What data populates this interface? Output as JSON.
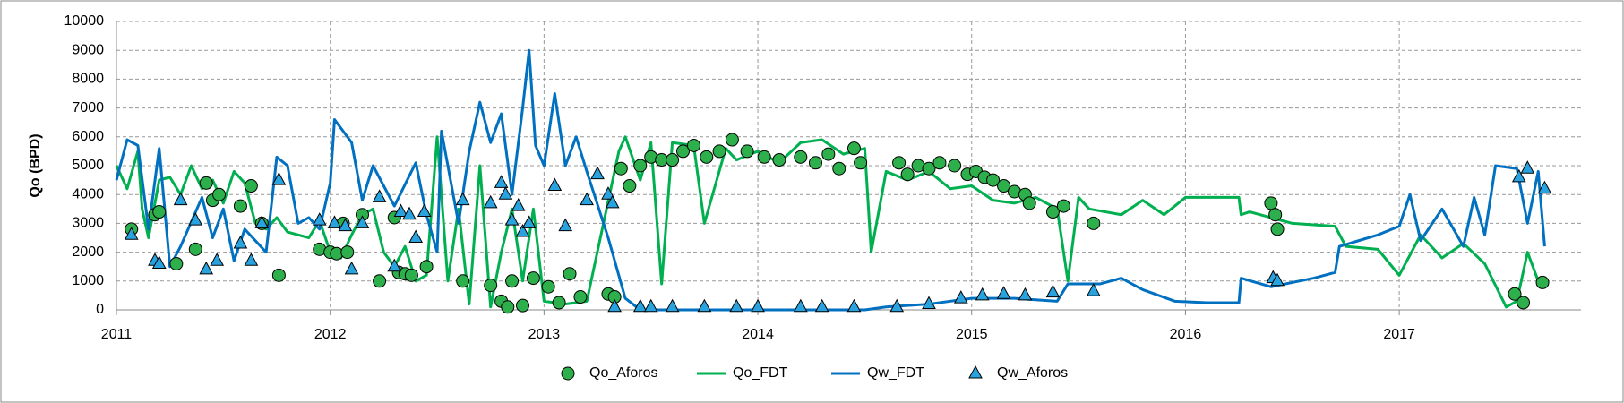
{
  "chart_data": {
    "type": "combo",
    "ylabel": "Qo (BPD)",
    "xlim": [
      2011,
      2017.85
    ],
    "xticks": [
      2011,
      2012,
      2013,
      2014,
      2015,
      2016,
      2017
    ],
    "ylim": [
      0,
      10000
    ],
    "yticks": [
      0,
      1000,
      2000,
      3000,
      4000,
      5000,
      6000,
      7000,
      8000,
      9000,
      10000
    ],
    "grid": true,
    "legend": "bottom",
    "series": [
      {
        "name": "Qo_Aforos",
        "kind": "scatter",
        "marker": "circle",
        "color": "#2db04b",
        "x": [
          2011.07,
          2011.18,
          2011.2,
          2011.28,
          2011.37,
          2011.42,
          2011.45,
          2011.48,
          2011.58,
          2011.63,
          2011.68,
          2011.76,
          2011.95,
          2012.0,
          2012.03,
          2012.06,
          2012.08,
          2012.15,
          2012.23,
          2012.3,
          2012.32,
          2012.35,
          2012.38,
          2012.45,
          2012.62,
          2012.75,
          2012.8,
          2012.83,
          2012.85,
          2012.9,
          2012.95,
          2013.02,
          2013.07,
          2013.12,
          2013.17,
          2013.3,
          2013.33,
          2013.36,
          2013.4,
          2013.45,
          2013.5,
          2013.55,
          2013.6,
          2013.65,
          2013.7,
          2013.76,
          2013.82,
          2013.88,
          2013.95,
          2014.03,
          2014.1,
          2014.2,
          2014.27,
          2014.33,
          2014.38,
          2014.45,
          2014.48,
          2014.66,
          2014.7,
          2014.75,
          2014.8,
          2014.85,
          2014.92,
          2014.98,
          2015.02,
          2015.06,
          2015.1,
          2015.15,
          2015.2,
          2015.25,
          2015.27,
          2015.38,
          2015.43,
          2015.57,
          2016.4,
          2016.42,
          2016.43,
          2017.54,
          2017.58,
          2017.67
        ],
        "values": [
          2800,
          3300,
          3400,
          1600,
          2100,
          4400,
          3800,
          4000,
          3600,
          4300,
          3000,
          1200,
          2100,
          2000,
          1950,
          3000,
          2000,
          3300,
          1000,
          3200,
          1300,
          1250,
          1200,
          1500,
          1000,
          850,
          300,
          100,
          1000,
          150,
          1100,
          800,
          250,
          1250,
          450,
          550,
          450,
          4900,
          4300,
          5000,
          5300,
          5200,
          5200,
          5500,
          5700,
          5300,
          5500,
          5900,
          5500,
          5300,
          5200,
          5300,
          5100,
          5400,
          4900,
          5600,
          5100,
          5100,
          4700,
          5000,
          4900,
          5100,
          5000,
          4700,
          4800,
          4600,
          4500,
          4300,
          4100,
          4000,
          3700,
          3400,
          3600,
          3000,
          3700,
          3300,
          2800,
          550,
          250,
          950
        ]
      },
      {
        "name": "Qo_FDT",
        "kind": "line",
        "color": "#00b050",
        "x": [
          2011.0,
          2011.05,
          2011.1,
          2011.12,
          2011.15,
          2011.2,
          2011.25,
          2011.3,
          2011.35,
          2011.4,
          2011.45,
          2011.5,
          2011.55,
          2011.6,
          2011.65,
          2011.7,
          2011.75,
          2011.8,
          2011.9,
          2011.95,
          2012.0,
          2012.05,
          2012.1,
          2012.15,
          2012.2,
          2012.25,
          2012.3,
          2012.35,
          2012.4,
          2012.45,
          2012.5,
          2012.55,
          2012.6,
          2012.65,
          2012.7,
          2012.75,
          2012.8,
          2012.85,
          2012.9,
          2012.95,
          2013.0,
          2013.1,
          2013.2,
          2013.35,
          2013.38,
          2013.45,
          2013.5,
          2013.55,
          2013.6,
          2013.7,
          2013.75,
          2013.85,
          2013.9,
          2014.0,
          2014.1,
          2014.2,
          2014.3,
          2014.4,
          2014.5,
          2014.53,
          2014.6,
          2014.7,
          2014.8,
          2014.9,
          2015.0,
          2015.1,
          2015.2,
          2015.3,
          2015.4,
          2015.45,
          2015.5,
          2015.55,
          2015.7,
          2015.8,
          2015.9,
          2016.0,
          2016.25,
          2016.26,
          2016.3,
          2016.5,
          2016.7,
          2016.75,
          2016.9,
          2017.0,
          2017.1,
          2017.2,
          2017.3,
          2017.4,
          2017.5,
          2017.55,
          2017.6,
          2017.65
        ],
        "values": [
          5000,
          4200,
          5500,
          3500,
          2500,
          4500,
          4600,
          4000,
          5000,
          4200,
          4500,
          3700,
          4800,
          4400,
          3000,
          2800,
          3200,
          2700,
          2500,
          3100,
          2000,
          1800,
          2600,
          3300,
          3500,
          2000,
          1500,
          2200,
          1000,
          1200,
          6000,
          1000,
          3500,
          200,
          5000,
          100,
          2000,
          3500,
          1000,
          3500,
          300,
          200,
          300,
          5500,
          6000,
          4500,
          5800,
          900,
          5800,
          5700,
          3000,
          5600,
          5200,
          5500,
          5100,
          5800,
          5900,
          5400,
          5600,
          2000,
          4800,
          4500,
          4800,
          4200,
          4300,
          3800,
          3700,
          3900,
          3500,
          1000,
          3900,
          3500,
          3300,
          3800,
          3300,
          3900,
          3900,
          3300,
          3400,
          3000,
          2900,
          2200,
          2100,
          1200,
          2600,
          1800,
          2300,
          1600,
          100,
          300,
          2000,
          1000
        ]
      },
      {
        "name": "Qw_FDT",
        "kind": "line",
        "color": "#0070c0",
        "x": [
          2011.0,
          2011.05,
          2011.1,
          2011.15,
          2011.2,
          2011.25,
          2011.3,
          2011.4,
          2011.45,
          2011.5,
          2011.55,
          2011.6,
          2011.7,
          2011.75,
          2011.8,
          2011.85,
          2011.9,
          2011.95,
          2012.0,
          2012.02,
          2012.1,
          2012.15,
          2012.2,
          2012.3,
          2012.4,
          2012.45,
          2012.5,
          2012.52,
          2012.6,
          2012.65,
          2012.7,
          2012.75,
          2012.8,
          2012.85,
          2012.9,
          2012.93,
          2012.96,
          2013.0,
          2013.05,
          2013.1,
          2013.15,
          2013.2,
          2013.3,
          2013.38,
          2013.45,
          2014.0,
          2014.5,
          2014.6,
          2014.8,
          2015.0,
          2015.2,
          2015.4,
          2015.45,
          2015.6,
          2015.7,
          2015.8,
          2015.95,
          2016.1,
          2016.25,
          2016.26,
          2016.4,
          2016.6,
          2016.7,
          2016.72,
          2016.9,
          2017.0,
          2017.05,
          2017.1,
          2017.2,
          2017.3,
          2017.35,
          2017.4,
          2017.45,
          2017.55,
          2017.6,
          2017.65,
          2017.68
        ],
        "values": [
          4500,
          5900,
          5700,
          2800,
          5600,
          1500,
          2200,
          3900,
          2500,
          3500,
          1700,
          2800,
          2000,
          5300,
          5000,
          3000,
          3200,
          2800,
          4400,
          6600,
          5800,
          3800,
          5000,
          3600,
          5100,
          3300,
          2000,
          6200,
          3000,
          5500,
          7200,
          5800,
          6800,
          4000,
          7000,
          9000,
          5700,
          5000,
          7500,
          5000,
          6000,
          4800,
          2500,
          400,
          0,
          0,
          0,
          100,
          200,
          400,
          400,
          300,
          900,
          900,
          1100,
          700,
          300,
          250,
          250,
          1100,
          800,
          1100,
          1300,
          2200,
          2600,
          2900,
          4000,
          2400,
          3500,
          2200,
          3900,
          2600,
          5000,
          4900,
          3000,
          4800,
          2200
        ]
      },
      {
        "name": "Qw_Aforos",
        "kind": "scatter",
        "marker": "triangle",
        "color": "#29a3e0",
        "x": [
          2011.07,
          2011.18,
          2011.2,
          2011.3,
          2011.37,
          2011.42,
          2011.47,
          2011.58,
          2011.63,
          2011.68,
          2011.76,
          2011.95,
          2012.02,
          2012.07,
          2012.1,
          2012.15,
          2012.23,
          2012.3,
          2012.33,
          2012.37,
          2012.4,
          2012.44,
          2012.62,
          2012.75,
          2012.8,
          2012.82,
          2012.85,
          2012.88,
          2012.9,
          2012.93,
          2013.05,
          2013.1,
          2013.2,
          2013.25,
          2013.3,
          2013.32,
          2013.33,
          2013.45,
          2013.5,
          2013.6,
          2013.75,
          2013.9,
          2014.0,
          2014.2,
          2014.3,
          2014.45,
          2014.65,
          2014.8,
          2014.95,
          2015.05,
          2015.15,
          2015.25,
          2015.38,
          2015.57,
          2016.41,
          2016.43,
          2017.56,
          2017.6,
          2017.68
        ],
        "values": [
          2600,
          1700,
          1600,
          3800,
          3100,
          1400,
          1700,
          2300,
          1700,
          3000,
          4500,
          3100,
          3000,
          2900,
          1400,
          3000,
          3900,
          1500,
          3400,
          3300,
          2500,
          3400,
          3800,
          3700,
          4400,
          4000,
          3100,
          3600,
          2700,
          3000,
          4300,
          2900,
          3800,
          4700,
          4000,
          3700,
          100,
          100,
          100,
          100,
          100,
          100,
          100,
          100,
          100,
          100,
          100,
          200,
          400,
          500,
          550,
          500,
          600,
          650,
          1100,
          1000,
          4600,
          4900,
          4200
        ]
      }
    ]
  }
}
